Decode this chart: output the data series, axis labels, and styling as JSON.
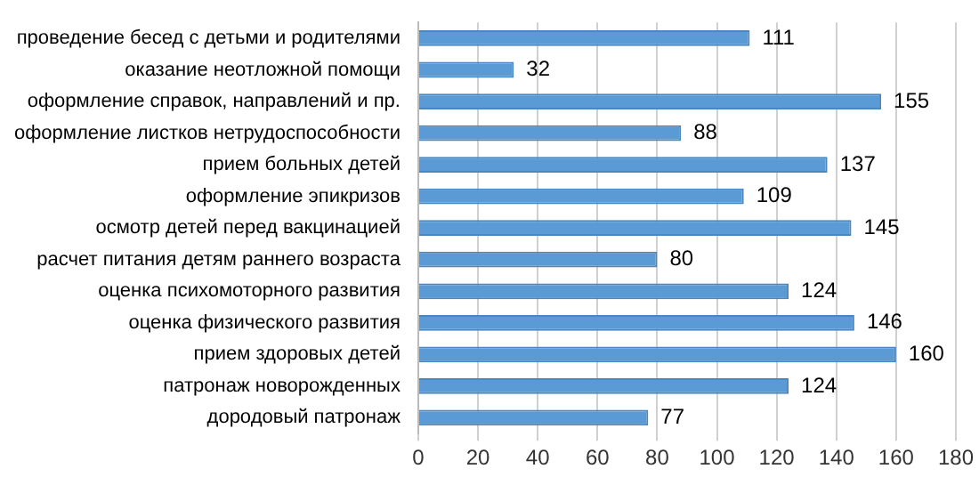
{
  "chart_data": {
    "type": "bar",
    "orientation": "horizontal",
    "categories": [
      "проведение бесед с детьми и родителями",
      "оказание неотложной помощи",
      "оформление справок, направлений и пр.",
      "оформление листков нетрудоспособности",
      "прием больных детей",
      "оформление эпикризов",
      "осмотр детей перед вакцинацией",
      "расчет питания детям раннего возраста",
      "оценка психомоторного развития",
      "оценка физического развития",
      "прием здоровых детей",
      "патронаж новорожденных",
      "дородовый патронаж"
    ],
    "values": [
      111,
      32,
      155,
      88,
      137,
      109,
      145,
      80,
      124,
      146,
      160,
      124,
      77
    ],
    "color": "#5b9bd5",
    "xlim": [
      0,
      180
    ],
    "xticks": [
      0,
      20,
      40,
      60,
      80,
      100,
      120,
      140,
      160,
      180
    ],
    "grid": "x",
    "data_labels": true
  }
}
